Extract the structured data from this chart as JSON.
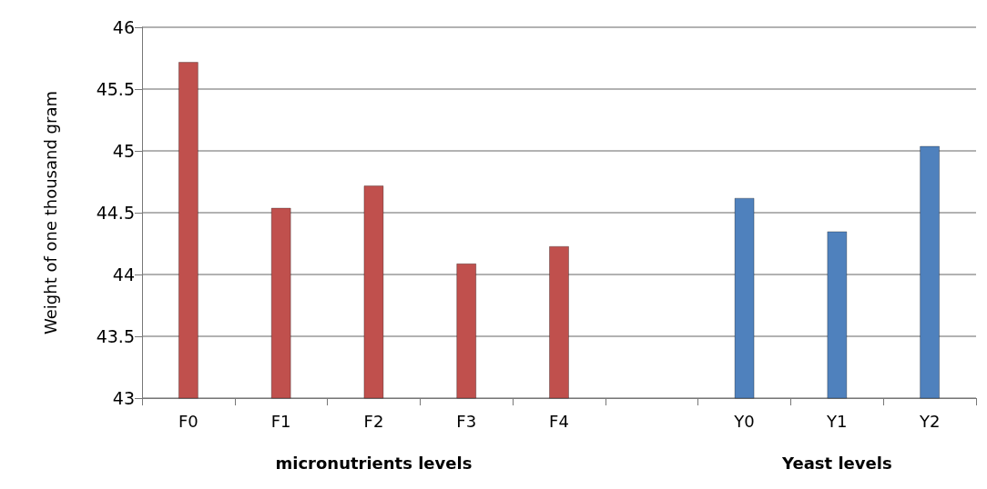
{
  "chart_data": {
    "type": "bar",
    "ylabel": "Weight of one thousand gram",
    "categories": [
      "F0",
      "F1",
      "F2",
      "F3",
      "F4",
      null,
      "Y0",
      "Y1",
      "Y2"
    ],
    "values": [
      45.72,
      44.54,
      44.72,
      44.09,
      44.23,
      null,
      44.62,
      44.35,
      45.04
    ],
    "colors": [
      "#c0504d",
      "#c0504d",
      "#c0504d",
      "#c0504d",
      "#c0504d",
      null,
      "#4f81bd",
      "#4f81bd",
      "#4f81bd"
    ],
    "ylim": [
      43,
      46
    ],
    "yticks": [
      43,
      43.5,
      44,
      44.5,
      45,
      45.5,
      46
    ],
    "annotations": [
      "micronutrients levels",
      "Yeast levels"
    ],
    "grid": "y"
  }
}
